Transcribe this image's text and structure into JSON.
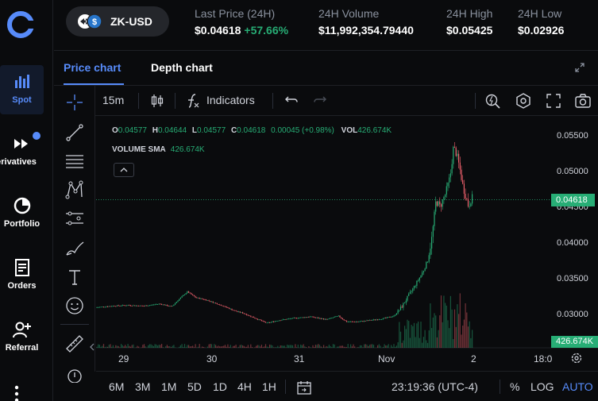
{
  "nav": {
    "items": [
      {
        "label": "Spot",
        "icon": "bar-chart-icon",
        "active": true
      },
      {
        "label": "erivatives",
        "icon": "fast-forward-icon",
        "active": false
      },
      {
        "label": "Portfolio",
        "icon": "pie-chart-icon",
        "active": false
      },
      {
        "label": "Orders",
        "icon": "document-icon",
        "active": false
      },
      {
        "label": "Referral",
        "icon": "add-user-icon",
        "active": false
      }
    ]
  },
  "market": {
    "pair": "ZK-USD",
    "last_price_label": "Last Price (24H)",
    "last_price": "$0.04618",
    "change": "+57.66%",
    "volume_label": "24H Volume",
    "volume": "$11,992,354.79440",
    "high_label": "24H High",
    "high": "$0.05425",
    "low_label": "24H Low",
    "low": "$0.02926"
  },
  "tabs": {
    "price": "Price chart",
    "depth": "Depth chart"
  },
  "toolbar": {
    "interval": "15m",
    "indicators": "Indicators"
  },
  "legend": {
    "o_key": "O",
    "o": "0.04577",
    "h_key": "H",
    "h": "0.04644",
    "l_key": "L",
    "l": "0.04577",
    "c_key": "C",
    "c": "0.04618",
    "change": "0.00045 (+0.98%)",
    "vol_key": "VOL",
    "vol": "426.674K",
    "sma_label": "VOLUME SMA",
    "sma": "426.674K"
  },
  "axis": {
    "y_ticks": [
      "0.05500",
      "0.05000",
      "0.04500",
      "0.04000",
      "0.03500",
      "0.03000"
    ],
    "price_tag": "0.04618",
    "vol_tag": "426.674K",
    "x_ticks": [
      "29",
      "30",
      "31",
      "Nov",
      "2",
      "18:0"
    ]
  },
  "bottom": {
    "ranges": [
      "6M",
      "3M",
      "1M",
      "5D",
      "1D",
      "4H",
      "1H"
    ],
    "time": "23:19:36 (UTC-4)",
    "pct": "%",
    "log": "LOG",
    "auto": "AUTO"
  },
  "colors": {
    "up": "#27ad75",
    "down": "#f0616d",
    "accent": "#578bfa"
  }
}
